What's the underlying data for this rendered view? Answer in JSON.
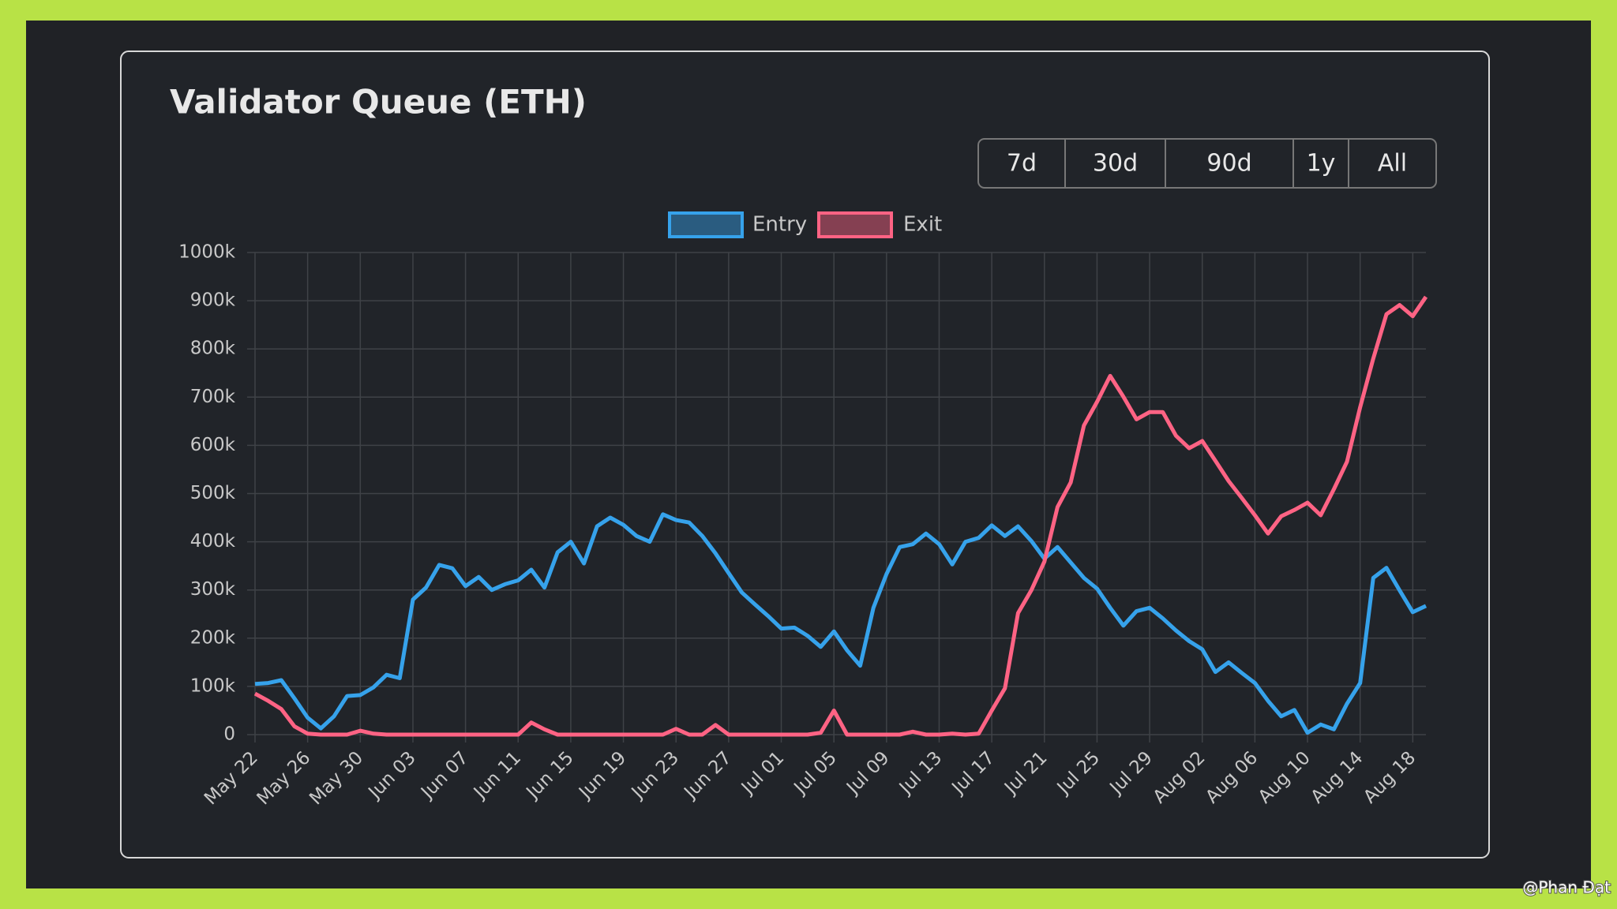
{
  "chart_data": {
    "type": "line",
    "title": "Validator Queue (ETH)",
    "categories": [
      "May 22",
      null,
      null,
      null,
      "May 26",
      null,
      null,
      null,
      "May 30",
      null,
      null,
      null,
      "Jun 03",
      null,
      null,
      null,
      "Jun 07",
      null,
      null,
      null,
      "Jun 11",
      null,
      null,
      null,
      "Jun 15",
      null,
      null,
      null,
      "Jun 19",
      null,
      null,
      null,
      "Jun 23",
      null,
      null,
      null,
      "Jun 27",
      null,
      null,
      null,
      "Jul 01",
      null,
      null,
      null,
      "Jul 05",
      null,
      null,
      null,
      "Jul 09",
      null,
      null,
      null,
      "Jul 13",
      null,
      null,
      null,
      "Jul 17",
      null,
      null,
      null,
      "Jul 21",
      null,
      null,
      null,
      "Jul 25",
      null,
      null,
      null,
      "Jul 29",
      null,
      null,
      null,
      "Aug 02",
      null,
      null,
      null,
      "Aug 06",
      null,
      null,
      null,
      "Aug 10",
      null,
      null,
      null,
      "Aug 14",
      null,
      null,
      null,
      "Aug 18",
      null
    ],
    "series": [
      {
        "name": "Entry",
        "color": "#36a2eb",
        "values": [
          105000,
          107000,
          113000,
          75000,
          35000,
          13000,
          38000,
          80000,
          82000,
          98000,
          124000,
          117000,
          280000,
          305000,
          352000,
          345000,
          308000,
          327000,
          300000,
          312000,
          320000,
          342000,
          305000,
          378000,
          400000,
          355000,
          432000,
          450000,
          435000,
          412000,
          400000,
          457000,
          445000,
          440000,
          412000,
          376000,
          335000,
          295000,
          270000,
          246000,
          220000,
          222000,
          205000,
          182000,
          214000,
          175000,
          143000,
          263000,
          333000,
          389000,
          395000,
          417000,
          395000,
          353000,
          400000,
          408000,
          434000,
          412000,
          432000,
          402000,
          365000,
          389000,
          357000,
          325000,
          303000,
          263000,
          226000,
          256000,
          263000,
          241000,
          216000,
          194000,
          177000,
          130000,
          150000,
          128000,
          107000,
          70000,
          38000,
          51000,
          4000,
          21000,
          11000,
          64000,
          107000,
          325000,
          346000,
          299000,
          254000,
          267000
        ]
      },
      {
        "name": "Exit",
        "color": "#ff6384",
        "values": [
          85000,
          70000,
          53000,
          17000,
          2000,
          0,
          0,
          0,
          8000,
          2000,
          0,
          0,
          0,
          0,
          0,
          0,
          0,
          0,
          0,
          0,
          0,
          25000,
          11000,
          0,
          0,
          0,
          0,
          0,
          0,
          0,
          0,
          0,
          12000,
          0,
          0,
          20000,
          0,
          0,
          0,
          0,
          0,
          0,
          0,
          4000,
          50000,
          0,
          0,
          0,
          0,
          0,
          6000,
          0,
          0,
          2000,
          0,
          2000,
          50000,
          96000,
          252000,
          299000,
          359000,
          472000,
          523000,
          641000,
          690000,
          744000,
          701000,
          654000,
          669000,
          669000,
          620000,
          594000,
          609000,
          568000,
          526000,
          491000,
          455000,
          417000,
          453000,
          466000,
          481000,
          455000,
          509000,
          566000,
          679000,
          780000,
          872000,
          891000,
          868000,
          908000
        ]
      }
    ],
    "ylim": [
      0,
      1000000
    ],
    "yticks": [
      0,
      {
        "value": 100000,
        "label": "100k"
      },
      {
        "value": 200000,
        "label": "200k"
      },
      {
        "value": 300000,
        "label": "300k"
      },
      {
        "value": 400000,
        "label": "400k"
      },
      {
        "value": 500000,
        "label": "500k"
      },
      {
        "value": 600000,
        "label": "600k"
      },
      {
        "value": 700000,
        "label": "700k"
      },
      {
        "value": 800000,
        "label": "800k"
      },
      {
        "value": 900000,
        "label": "900k"
      },
      {
        "value": 1000000,
        "label": "1000k"
      }
    ],
    "grid": true,
    "legend": "top"
  },
  "ui": {
    "range_buttons": [
      "7d",
      "30d",
      "90d",
      "1y",
      "All"
    ],
    "watermark": "@Phan Đạt"
  }
}
